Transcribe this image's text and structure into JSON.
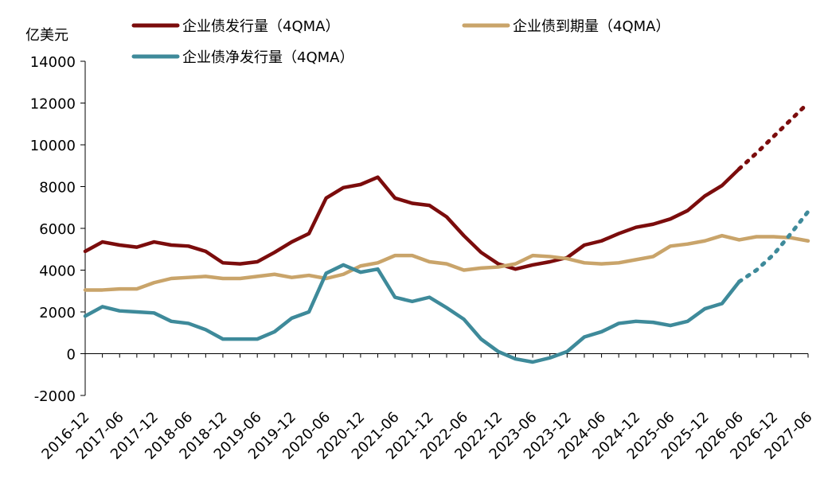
{
  "chart_data": {
    "type": "line",
    "ylabel": "亿美元",
    "ylim": [
      -2000,
      14000
    ],
    "yticks": [
      "-2000",
      "0",
      "2000",
      "4000",
      "6000",
      "8000",
      "10000",
      "12000",
      "14000"
    ],
    "xtick_labels": [
      "2016-12",
      "2017-06",
      "2017-12",
      "2018-06",
      "2018-12",
      "2019-06",
      "2019-12",
      "2020-06",
      "2020-12",
      "2021-06",
      "2021-12",
      "2022-06",
      "2022-12",
      "2023-06",
      "2023-12",
      "2024-06",
      "2024-12",
      "2025-06",
      "2025-12",
      "2026-06",
      "2026-12",
      "2027-06"
    ],
    "x": [
      "2016-12",
      "2017-03",
      "2017-06",
      "2017-09",
      "2017-12",
      "2018-03",
      "2018-06",
      "2018-09",
      "2018-12",
      "2019-03",
      "2019-06",
      "2019-09",
      "2019-12",
      "2020-03",
      "2020-06",
      "2020-09",
      "2020-12",
      "2021-03",
      "2021-06",
      "2021-09",
      "2021-12",
      "2022-03",
      "2022-06",
      "2022-09",
      "2022-12",
      "2023-03",
      "2023-06",
      "2023-09",
      "2023-12",
      "2024-03",
      "2024-06",
      "2024-09",
      "2024-12",
      "2025-03",
      "2025-06",
      "2025-09",
      "2025-12",
      "2026-03",
      "2026-06",
      "2026-09",
      "2026-12",
      "2027-03",
      "2027-06"
    ],
    "series": [
      {
        "name": "企业债发行量（4QMA）",
        "color": "#7b0c0c",
        "values": [
          4900,
          5350,
          5200,
          5100,
          5350,
          5200,
          5150,
          4900,
          4350,
          4300,
          4400,
          4850,
          5350,
          5750,
          7450,
          7950,
          8100,
          8450,
          7450,
          7200,
          7100,
          6550,
          5650,
          4850,
          4300,
          4050,
          4250,
          4400,
          4600,
          5200,
          5400,
          5750,
          6050,
          6200,
          6450,
          6850,
          7550,
          8050,
          8850,
          9600,
          10400,
          11200,
          12000
        ],
        "dotted_from_index": 38
      },
      {
        "name": "企业债到期量（4QMA）",
        "color": "#c9a46a",
        "values": [
          3050,
          3050,
          3100,
          3100,
          3400,
          3600,
          3650,
          3700,
          3600,
          3600,
          3700,
          3800,
          3650,
          3750,
          3600,
          3800,
          4200,
          4350,
          4700,
          4700,
          4400,
          4300,
          4000,
          4100,
          4150,
          4300,
          4700,
          4650,
          4550,
          4350,
          4300,
          4350,
          4500,
          4650,
          5150,
          5250,
          5400,
          5650,
          5450,
          5600,
          5600,
          5550,
          5400
        ],
        "dotted_from_index": null
      },
      {
        "name": "企业债净发行量（4QMA）",
        "color": "#3e8a9a",
        "values": [
          1800,
          2250,
          2050,
          2000,
          1950,
          1550,
          1450,
          1150,
          700,
          700,
          700,
          1050,
          1700,
          2000,
          3850,
          4250,
          3900,
          4050,
          2700,
          2500,
          2700,
          2200,
          1650,
          700,
          100,
          -250,
          -400,
          -200,
          100,
          800,
          1050,
          1450,
          1550,
          1500,
          1350,
          1550,
          2150,
          2400,
          3450,
          4000,
          4750,
          5750,
          6800
        ],
        "dotted_from_index": 38
      }
    ],
    "legend_position": "top"
  }
}
